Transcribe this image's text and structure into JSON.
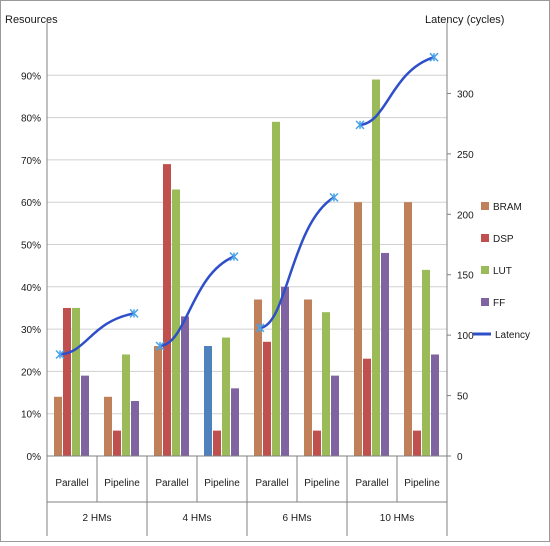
{
  "chart_data": {
    "type": "bar",
    "ylabel_left": "Resources",
    "ylabel_right": "Latency (cycles)",
    "y_left_ticks": [
      "0%",
      "10%",
      "20%",
      "30%",
      "40%",
      "50%",
      "60%",
      "70%",
      "80%",
      "90%"
    ],
    "y_left_range": [
      0,
      100
    ],
    "y_right_ticks": [
      "0",
      "50",
      "100",
      "150",
      "200",
      "250",
      "300"
    ],
    "y_right_range": [
      0,
      350
    ],
    "groups": [
      "2 HMs",
      "4 HMs",
      "6 HMs",
      "10 HMs"
    ],
    "subcategories": [
      "Parallel",
      "Pipeline"
    ],
    "categories": [
      "Parallel",
      "Pipeline",
      "Parallel",
      "Pipeline",
      "Parallel",
      "Pipeline",
      "Parallel",
      "Pipeline"
    ],
    "series": [
      {
        "name": "BRAM",
        "color": "#c0805a",
        "values": [
          14,
          14,
          26,
          26,
          37,
          37,
          60,
          60
        ]
      },
      {
        "name": "DSP",
        "color": "#c0504d",
        "values": [
          35,
          6,
          69,
          6,
          27,
          6,
          23,
          6
        ]
      },
      {
        "name": "LUT",
        "color": "#9bbb59",
        "values": [
          35,
          24,
          63,
          28,
          79,
          34,
          89,
          44
        ]
      },
      {
        "name": "FF",
        "color": "#8064a2",
        "values": [
          19,
          13,
          33,
          16,
          40,
          19,
          48,
          24
        ]
      }
    ],
    "special_bar_colors": [
      {
        "series": "BRAM",
        "index": 3,
        "color": "#4f81bd"
      }
    ],
    "latency": {
      "name": "Latency",
      "color": "#2f4fc9",
      "axis": "right",
      "segments": [
        {
          "group": "2 HMs",
          "from": 84,
          "to": 118
        },
        {
          "group": "4 HMs",
          "from": 91,
          "to": 165
        },
        {
          "group": "6 HMs",
          "from": 106,
          "to": 214
        },
        {
          "group": "10 HMs",
          "from": 274,
          "to": 330
        }
      ]
    },
    "legend_position": "right",
    "grid": true
  }
}
